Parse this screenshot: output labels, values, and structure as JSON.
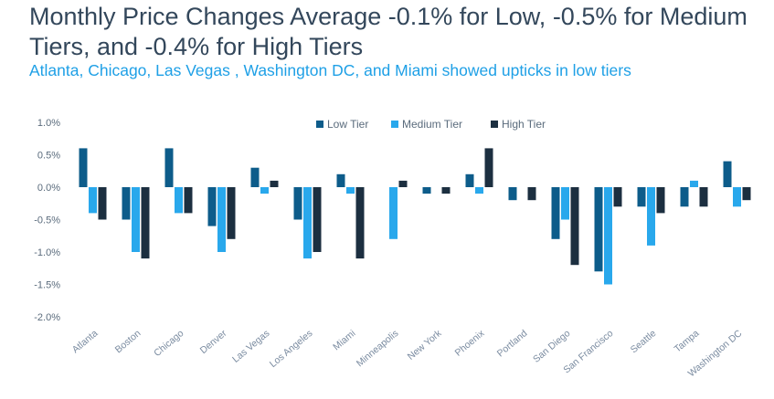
{
  "title": "Monthly Price Changes Average -0.1% for Low, -0.5% for Medium Tiers, and -0.4% for High Tiers",
  "subtitle": "Atlanta, Chicago, Las Vegas , Washington DC, and Miami showed upticks in low tiers",
  "colors": {
    "low": "#0d5c8a",
    "medium": "#29a8ec",
    "high": "#1c2f40",
    "title": "#33475b",
    "subtitle": "#1fa0e6"
  },
  "chart_data": {
    "type": "bar",
    "title": "Monthly Price Changes Average -0.1% for Low, -0.5% for Medium Tiers, and -0.4% for High Tiers",
    "xlabel": "",
    "ylabel": "",
    "ylim": [
      -2.0,
      1.0
    ],
    "yticks": [
      1.0,
      0.5,
      0.0,
      -0.5,
      -1.0,
      -1.5,
      -2.0
    ],
    "ytick_labels": [
      "1.0%",
      "0.5%",
      "0.0%",
      "-0.5%",
      "-1.0%",
      "-1.5%",
      "-2.0%"
    ],
    "grid": false,
    "legend_position": "top-center",
    "categories": [
      "Atlanta",
      "Boston",
      "Chicago",
      "Denver",
      "Las Vegas",
      "Los Angeles",
      "Miami",
      "Minneapolis",
      "New York",
      "Phoenix",
      "Portland",
      "San Diego",
      "San Francisco",
      "Seattle",
      "Tampa",
      "Washington DC"
    ],
    "series": [
      {
        "name": "Low Tier",
        "color": "#0d5c8a",
        "values": [
          0.6,
          -0.5,
          0.6,
          -0.6,
          0.3,
          -0.5,
          0.2,
          0.0,
          -0.1,
          0.2,
          -0.2,
          -0.8,
          -1.3,
          -0.3,
          -0.3,
          0.4
        ]
      },
      {
        "name": "Medium Tier",
        "color": "#29a8ec",
        "values": [
          -0.4,
          -1.0,
          -0.4,
          -1.0,
          -0.1,
          -1.1,
          -0.1,
          -0.8,
          0.0,
          -0.1,
          0.0,
          -0.5,
          -1.5,
          -0.9,
          0.1,
          -0.3
        ]
      },
      {
        "name": "High Tier",
        "color": "#1c2f40",
        "values": [
          -0.5,
          -1.1,
          -0.4,
          -0.8,
          0.1,
          -1.0,
          -1.1,
          0.1,
          -0.1,
          0.6,
          -0.2,
          -1.2,
          -0.3,
          -0.4,
          -0.3,
          -0.2
        ]
      }
    ]
  }
}
